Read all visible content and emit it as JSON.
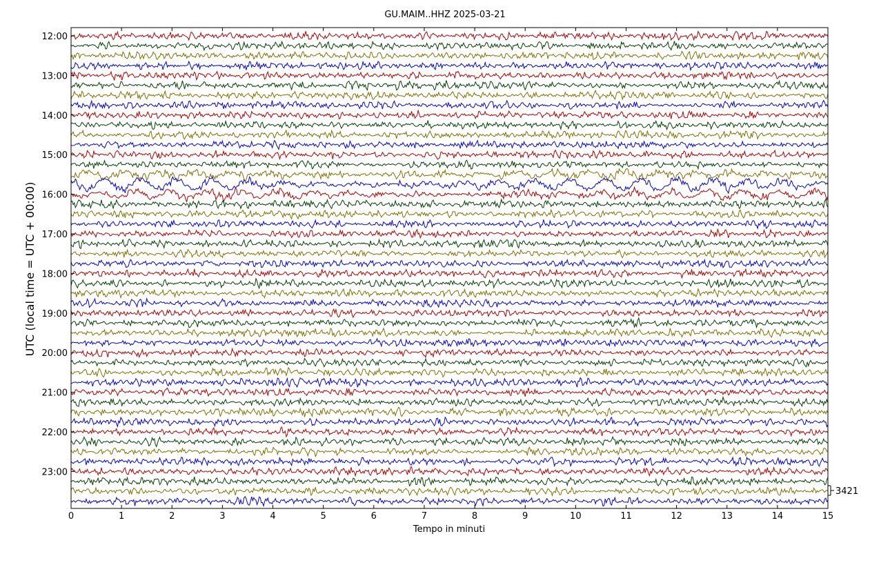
{
  "chart_data": {
    "type": "line",
    "title": "GU.MAIM..HHZ 2025-03-21",
    "xlabel": "Tempo in minuti",
    "ylabel": "UTC (local time = UTC + 00:00)",
    "xlim": [
      0,
      15
    ],
    "x_ticks": [
      "0",
      "1",
      "2",
      "3",
      "4",
      "5",
      "6",
      "7",
      "8",
      "9",
      "10",
      "11",
      "12",
      "13",
      "14",
      "15"
    ],
    "y_tick_labels": [
      "12:00",
      "13:00",
      "14:00",
      "15:00",
      "16:00",
      "17:00",
      "18:00",
      "19:00",
      "20:00",
      "21:00",
      "22:00",
      "23:00"
    ],
    "trace_count": 48,
    "trace_interval_minutes": 15,
    "series_colors": [
      "#b00000",
      "#004000",
      "#807000",
      "#0000e0"
    ],
    "scale_label": "3421",
    "grid": false,
    "legend": "none"
  }
}
